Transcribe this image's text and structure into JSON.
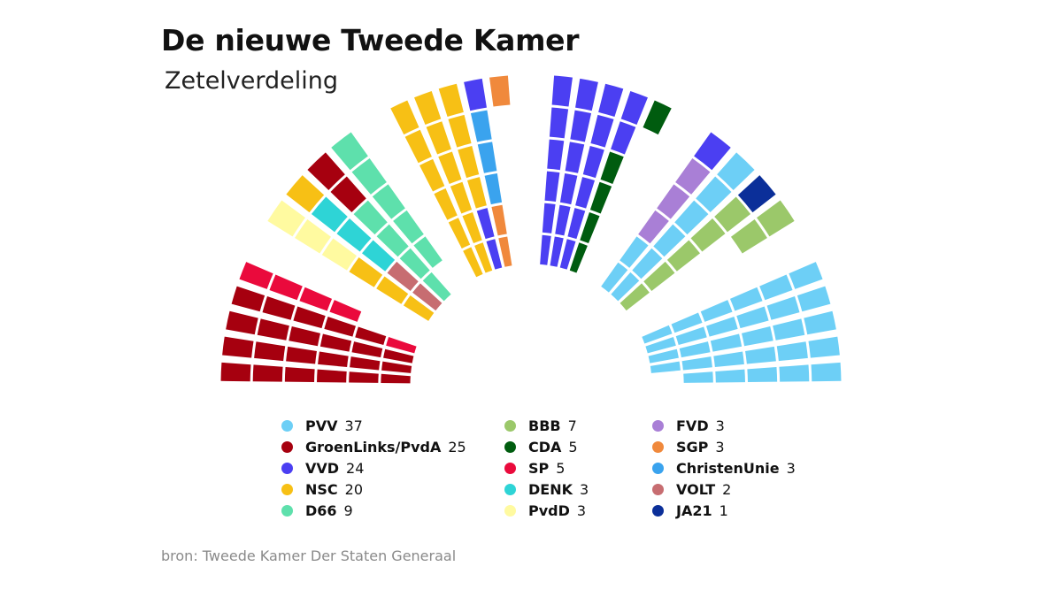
{
  "header": {
    "title": "De nieuwe Tweede Kamer",
    "subtitle": "Zetelverdeling"
  },
  "source": "bron: Tweede Kamer Der Staten Generaal",
  "chart_data": {
    "type": "hemicycle",
    "total_seats": 150,
    "series": [
      {
        "name": "PVV",
        "value": 37,
        "color": "#6dcff6"
      },
      {
        "name": "GroenLinks/PvdA",
        "value": 25,
        "color": "#a6000f"
      },
      {
        "name": "VVD",
        "value": 24,
        "color": "#4b3ff2"
      },
      {
        "name": "NSC",
        "value": 20,
        "color": "#f7c015"
      },
      {
        "name": "D66",
        "value": 9,
        "color": "#5ee0ac"
      },
      {
        "name": "BBB",
        "value": 7,
        "color": "#9bc86a"
      },
      {
        "name": "CDA",
        "value": 5,
        "color": "#005c0f"
      },
      {
        "name": "SP",
        "value": 5,
        "color": "#ea0a3c"
      },
      {
        "name": "DENK",
        "value": 3,
        "color": "#2ed4d6"
      },
      {
        "name": "PvdD",
        "value": 3,
        "color": "#fffaa0"
      },
      {
        "name": "FVD",
        "value": 3,
        "color": "#a97fd6"
      },
      {
        "name": "SGP",
        "value": 3,
        "color": "#f0893c"
      },
      {
        "name": "ChristenUnie",
        "value": 3,
        "color": "#3aa3ee"
      },
      {
        "name": "VOLT",
        "value": 2,
        "color": "#c76d71"
      },
      {
        "name": "JA21",
        "value": 1,
        "color": "#0b2f99"
      }
    ]
  }
}
